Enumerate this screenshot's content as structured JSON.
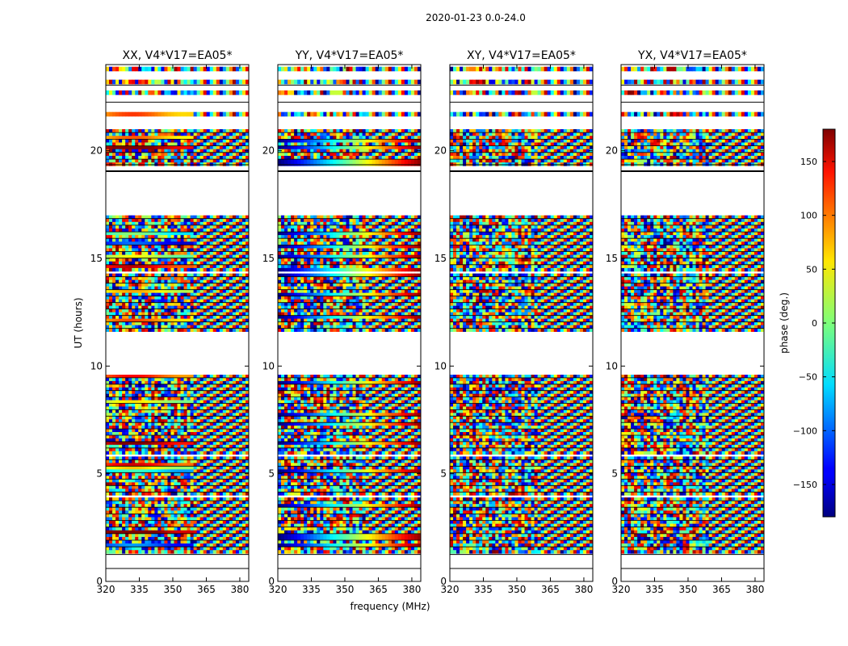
{
  "chart_data": {
    "type": "heatmap",
    "suptitle": "2020-01-23 0.0-24.0",
    "xlabel": "frequency (MHz)",
    "ylabel": "UT (hours)",
    "xlim": [
      320,
      384
    ],
    "ylim": [
      0,
      24
    ],
    "xticks": [
      "320",
      "335",
      "350",
      "365",
      "380"
    ],
    "yticks": [
      "0",
      "5",
      "10",
      "15",
      "20"
    ],
    "colorbar": {
      "label": "phase (deg.)",
      "range": [
        -180,
        180
      ],
      "ticks": [
        "150",
        "100",
        "50",
        "0",
        "−50",
        "−100",
        "−150"
      ],
      "colormap": "jet"
    },
    "panels": [
      {
        "title": "XX, V4*V17=EA05*"
      },
      {
        "title": "YY, V4*V17=EA05*"
      },
      {
        "title": "XY, V4*V17=EA05*"
      },
      {
        "title": "YX, V4*V17=EA05*"
      }
    ],
    "data_time_ranges_hours": [
      [
        1.3,
        3.9
      ],
      [
        4.0,
        5.8
      ],
      [
        5.9,
        9.6
      ],
      [
        11.6,
        14.3
      ],
      [
        14.4,
        17.0
      ],
      [
        19.3,
        21.0
      ],
      [
        21.6,
        21.8
      ],
      [
        22.6,
        22.8
      ],
      [
        23.1,
        23.3
      ],
      [
        23.7,
        23.9
      ]
    ]
  }
}
